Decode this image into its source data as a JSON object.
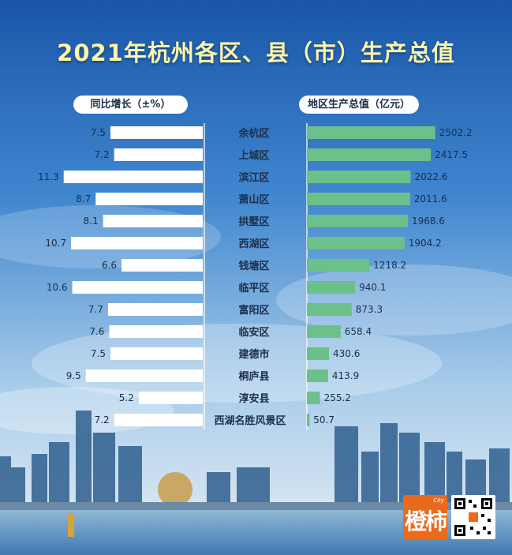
{
  "title": "2021年杭州各区、县（市）生产总值",
  "left_header": "同比增长（±%）",
  "right_header": "地区生产总值（亿元）",
  "chart_data": {
    "type": "bar",
    "title": "2021年杭州各区、县（市）生产总值",
    "categories": [
      "余杭区",
      "上城区",
      "滨江区",
      "萧山区",
      "拱墅区",
      "西湖区",
      "钱塘区",
      "临平区",
      "富阳区",
      "临安区",
      "建德市",
      "桐庐县",
      "淳安县",
      "西湖名胜风景区"
    ],
    "series": [
      {
        "name": "同比增长（±%）",
        "values": [
          7.5,
          7.2,
          11.3,
          8.7,
          8.1,
          10.7,
          6.6,
          10.6,
          7.7,
          7.6,
          7.5,
          9.5,
          5.2,
          7.2
        ]
      },
      {
        "name": "地区生产总值（亿元）",
        "values": [
          2502.2,
          2417.5,
          2022.6,
          2011.6,
          1968.6,
          1904.2,
          1218.2,
          940.1,
          873.3,
          658.4,
          430.6,
          413.9,
          255.2,
          50.7
        ]
      }
    ],
    "colors": {
      "growth_bar": "#ffffff",
      "gdp_bar": "#6cc08a",
      "title": "#fff4a8",
      "label_text": "#1c2e4a"
    }
  },
  "logo_text": "橙柿"
}
